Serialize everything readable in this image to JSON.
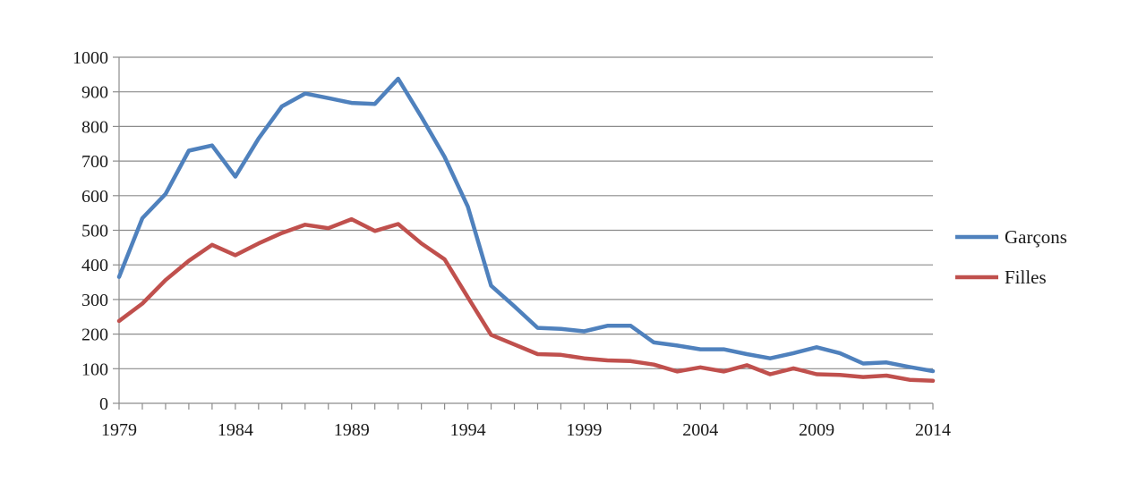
{
  "chart_data": {
    "type": "line",
    "title": "",
    "xlabel": "",
    "ylabel": "",
    "x": [
      1979,
      1980,
      1981,
      1982,
      1983,
      1984,
      1985,
      1986,
      1987,
      1988,
      1989,
      1990,
      1991,
      1992,
      1993,
      1994,
      1995,
      1996,
      1997,
      1998,
      1999,
      2000,
      2001,
      2002,
      2003,
      2004,
      2005,
      2006,
      2007,
      2008,
      2009,
      2010,
      2011,
      2012,
      2013,
      2014
    ],
    "xlim": [
      1979,
      2014
    ],
    "ylim": [
      0,
      1000
    ],
    "x_ticks": [
      "1979",
      "1984",
      "1989",
      "1994",
      "1999",
      "2004",
      "2009",
      "2014"
    ],
    "y_ticks": [
      "0",
      "100",
      "200",
      "300",
      "400",
      "500",
      "600",
      "700",
      "800",
      "900",
      "1000"
    ],
    "grid": "horizontal",
    "legend_position": "right",
    "series": [
      {
        "name": "Garçons",
        "color": "#4F81BD",
        "values": [
          365,
          535,
          605,
          730,
          745,
          655,
          765,
          858,
          895,
          882,
          868,
          865,
          938,
          828,
          712,
          568,
          340,
          280,
          218,
          215,
          208,
          224,
          224,
          176,
          167,
          156,
          156,
          142,
          130,
          145,
          162,
          145,
          115,
          118,
          105,
          93
        ]
      },
      {
        "name": "Filles",
        "color": "#C0504D",
        "values": [
          238,
          288,
          356,
          412,
          458,
          428,
          462,
          492,
          516,
          506,
          532,
          498,
          518,
          462,
          416,
          306,
          198,
          170,
          142,
          140,
          130,
          124,
          122,
          112,
          92,
          104,
          92,
          110,
          84,
          101,
          84,
          82,
          76,
          80,
          68,
          65
        ]
      }
    ]
  }
}
